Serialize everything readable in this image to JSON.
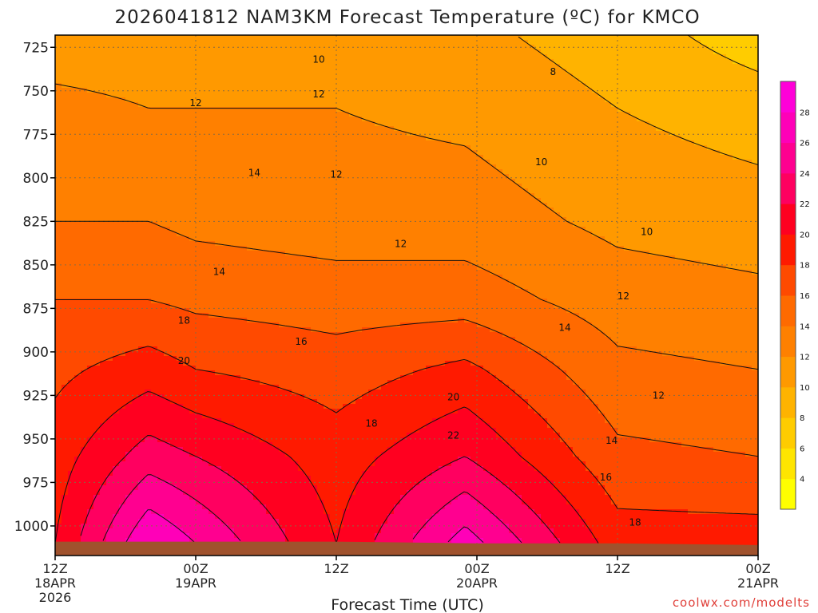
{
  "chart_data": {
    "type": "heatmap",
    "title": "2026041812 NAM3KM Forecast Temperature (ºC) for KMCO",
    "xlabel": "Forecast Time (UTC)",
    "ylabel": "",
    "credit": "coolwx.com/modelts",
    "x_ticks": [
      {
        "hours": 0,
        "lines": [
          "12Z",
          "18APR",
          "2026"
        ]
      },
      {
        "hours": 12,
        "lines": [
          "00Z",
          "19APR"
        ]
      },
      {
        "hours": 24,
        "lines": [
          "12Z"
        ]
      },
      {
        "hours": 36,
        "lines": [
          "00Z",
          "20APR"
        ]
      },
      {
        "hours": 48,
        "lines": [
          "12Z"
        ]
      },
      {
        "hours": 60,
        "lines": [
          "00Z",
          "21APR"
        ]
      }
    ],
    "xlim_hours": [
      0,
      60
    ],
    "y_ticks": [
      725,
      750,
      775,
      800,
      825,
      850,
      875,
      900,
      925,
      950,
      975,
      1000
    ],
    "ylim_hpa": [
      1017,
      718
    ],
    "grid": true,
    "surface_hpa": [
      1009,
      1009,
      1009,
      1010,
      1010,
      1011
    ],
    "colorbar": {
      "ticks": [
        4,
        6,
        8,
        10,
        12,
        14,
        16,
        18,
        20,
        22,
        24,
        26,
        28
      ],
      "range": [
        2,
        30
      ],
      "colors": [
        "#ffff00",
        "#ffe500",
        "#ffcc00",
        "#ffb300",
        "#ff9900",
        "#ff8000",
        "#ff6a00",
        "#ff4a00",
        "#ff1a00",
        "#ff0020",
        "#ff0060",
        "#ff0090",
        "#ff00b8",
        "#ff00d8"
      ]
    },
    "temperature_profiles": [
      {
        "hours": 0,
        "values": [
          {
            "p": 718,
            "t": 11
          },
          {
            "p": 760,
            "t": 12.5
          },
          {
            "p": 825,
            "t": 14
          },
          {
            "p": 870,
            "t": 16
          },
          {
            "p": 910,
            "t": 17.5
          },
          {
            "p": 960,
            "t": 19
          },
          {
            "p": 1010,
            "t": 20
          }
        ]
      },
      {
        "hours": 8,
        "values": [
          {
            "p": 718,
            "t": 11
          },
          {
            "p": 760,
            "t": 12
          },
          {
            "p": 825,
            "t": 14
          },
          {
            "p": 870,
            "t": 16
          },
          {
            "p": 910,
            "t": 19
          },
          {
            "p": 960,
            "t": 23
          },
          {
            "p": 1010,
            "t": 28
          }
        ]
      },
      {
        "hours": 12,
        "values": [
          {
            "p": 718,
            "t": 11
          },
          {
            "p": 760,
            "t": 12
          },
          {
            "p": 825,
            "t": 13.5
          },
          {
            "p": 870,
            "t": 15.5
          },
          {
            "p": 910,
            "t": 18
          },
          {
            "p": 960,
            "t": 22
          },
          {
            "p": 1010,
            "t": 26
          }
        ]
      },
      {
        "hours": 24,
        "values": [
          {
            "p": 718,
            "t": 11
          },
          {
            "p": 760,
            "t": 12
          },
          {
            "p": 825,
            "t": 13
          },
          {
            "p": 870,
            "t": 15
          },
          {
            "p": 910,
            "t": 17
          },
          {
            "p": 960,
            "t": 19
          },
          {
            "p": 1010,
            "t": 20
          }
        ]
      },
      {
        "hours": 35,
        "values": [
          {
            "p": 718,
            "t": 10.5
          },
          {
            "p": 760,
            "t": 11.5
          },
          {
            "p": 825,
            "t": 13
          },
          {
            "p": 870,
            "t": 15
          },
          {
            "p": 910,
            "t": 18.5
          },
          {
            "p": 960,
            "t": 22
          },
          {
            "p": 1010,
            "t": 27
          }
        ]
      },
      {
        "hours": 48,
        "values": [
          {
            "p": 718,
            "t": 9
          },
          {
            "p": 760,
            "t": 10
          },
          {
            "p": 825,
            "t": 11.5
          },
          {
            "p": 870,
            "t": 13
          },
          {
            "p": 910,
            "t": 14.5
          },
          {
            "p": 960,
            "t": 16.5
          },
          {
            "p": 1010,
            "t": 19
          }
        ]
      },
      {
        "hours": 60,
        "values": [
          {
            "p": 718,
            "t": 7
          },
          {
            "p": 760,
            "t": 9
          },
          {
            "p": 825,
            "t": 11
          },
          {
            "p": 870,
            "t": 12.5
          },
          {
            "p": 910,
            "t": 14
          },
          {
            "p": 960,
            "t": 16
          },
          {
            "p": 1010,
            "t": 19
          }
        ]
      }
    ],
    "contour_labels": [
      {
        "hours": 22.5,
        "p": 732,
        "text": "10"
      },
      {
        "hours": 42.5,
        "p": 739,
        "text": "8"
      },
      {
        "hours": 22.5,
        "p": 752,
        "text": "12"
      },
      {
        "hours": 12,
        "p": 757,
        "text": "12"
      },
      {
        "hours": 17,
        "p": 797,
        "text": "14"
      },
      {
        "hours": 24,
        "p": 798,
        "text": "12"
      },
      {
        "hours": 41.5,
        "p": 791,
        "text": "10"
      },
      {
        "hours": 50.5,
        "p": 831,
        "text": "10"
      },
      {
        "hours": 29.5,
        "p": 838,
        "text": "12"
      },
      {
        "hours": 14,
        "p": 854,
        "text": "14"
      },
      {
        "hours": 48.5,
        "p": 868,
        "text": "12"
      },
      {
        "hours": 43.5,
        "p": 886,
        "text": "14"
      },
      {
        "hours": 11,
        "p": 882,
        "text": "18"
      },
      {
        "hours": 21,
        "p": 894,
        "text": "16"
      },
      {
        "hours": 11,
        "p": 905,
        "text": "20"
      },
      {
        "hours": 51.5,
        "p": 925,
        "text": "12"
      },
      {
        "hours": 34,
        "p": 926,
        "text": "20"
      },
      {
        "hours": 27,
        "p": 941,
        "text": "18"
      },
      {
        "hours": 34,
        "p": 948,
        "text": "22"
      },
      {
        "hours": 47.5,
        "p": 951,
        "text": "14"
      },
      {
        "hours": 47,
        "p": 972,
        "text": "16"
      },
      {
        "hours": 49.5,
        "p": 998,
        "text": "18"
      }
    ]
  }
}
